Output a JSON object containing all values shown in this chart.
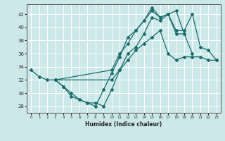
{
  "xlabel": "Humidex (Indice chaleur)",
  "xlim": [
    -0.5,
    23.5
  ],
  "ylim": [
    27,
    43.5
  ],
  "yticks": [
    28,
    30,
    32,
    34,
    36,
    38,
    40,
    42
  ],
  "xticks": [
    0,
    1,
    2,
    3,
    4,
    5,
    6,
    7,
    8,
    9,
    10,
    11,
    12,
    13,
    14,
    15,
    16,
    17,
    18,
    19,
    20,
    21,
    22,
    23
  ],
  "bg_color": "#cce8e8",
  "line_color": "#1a6b6b",
  "grid_color": "#ffffff",
  "line1_x": [
    0,
    1,
    2,
    3,
    4,
    5,
    6,
    7,
    8,
    9,
    10,
    11,
    12,
    13,
    14,
    15,
    16,
    17,
    18,
    19,
    20
  ],
  "line1_y": [
    33.5,
    32.5,
    32.0,
    32.0,
    31.0,
    29.5,
    29.0,
    28.5,
    28.0,
    30.5,
    33.0,
    35.5,
    38.5,
    39.5,
    41.0,
    42.5,
    41.5,
    42.0,
    39.0,
    39.0,
    36.0
  ],
  "line2_x": [
    3,
    4,
    5,
    6,
    7,
    8,
    9,
    10,
    11,
    12,
    13,
    14,
    15,
    16,
    17,
    18,
    19
  ],
  "line2_y": [
    32.0,
    31.0,
    30.0,
    29.0,
    28.5,
    28.5,
    28.0,
    30.5,
    33.5,
    36.0,
    37.0,
    39.0,
    41.5,
    41.0,
    42.0,
    42.5,
    39.0
  ],
  "line3_x": [
    3,
    10,
    11,
    12,
    13,
    14,
    15,
    16,
    17,
    18,
    19,
    20,
    21,
    22,
    23
  ],
  "line3_y": [
    32.0,
    33.5,
    36.0,
    37.5,
    39.5,
    41.0,
    43.0,
    41.5,
    42.0,
    39.5,
    39.5,
    42.0,
    37.0,
    36.5,
    35.0
  ],
  "line4_x": [
    3,
    10,
    11,
    12,
    13,
    14,
    15,
    16,
    17,
    18,
    19,
    20,
    21,
    22,
    23
  ],
  "line4_y": [
    32.0,
    32.0,
    33.5,
    35.0,
    36.5,
    37.5,
    38.5,
    39.5,
    36.0,
    35.0,
    35.5,
    35.5,
    35.5,
    35.0,
    35.0
  ]
}
